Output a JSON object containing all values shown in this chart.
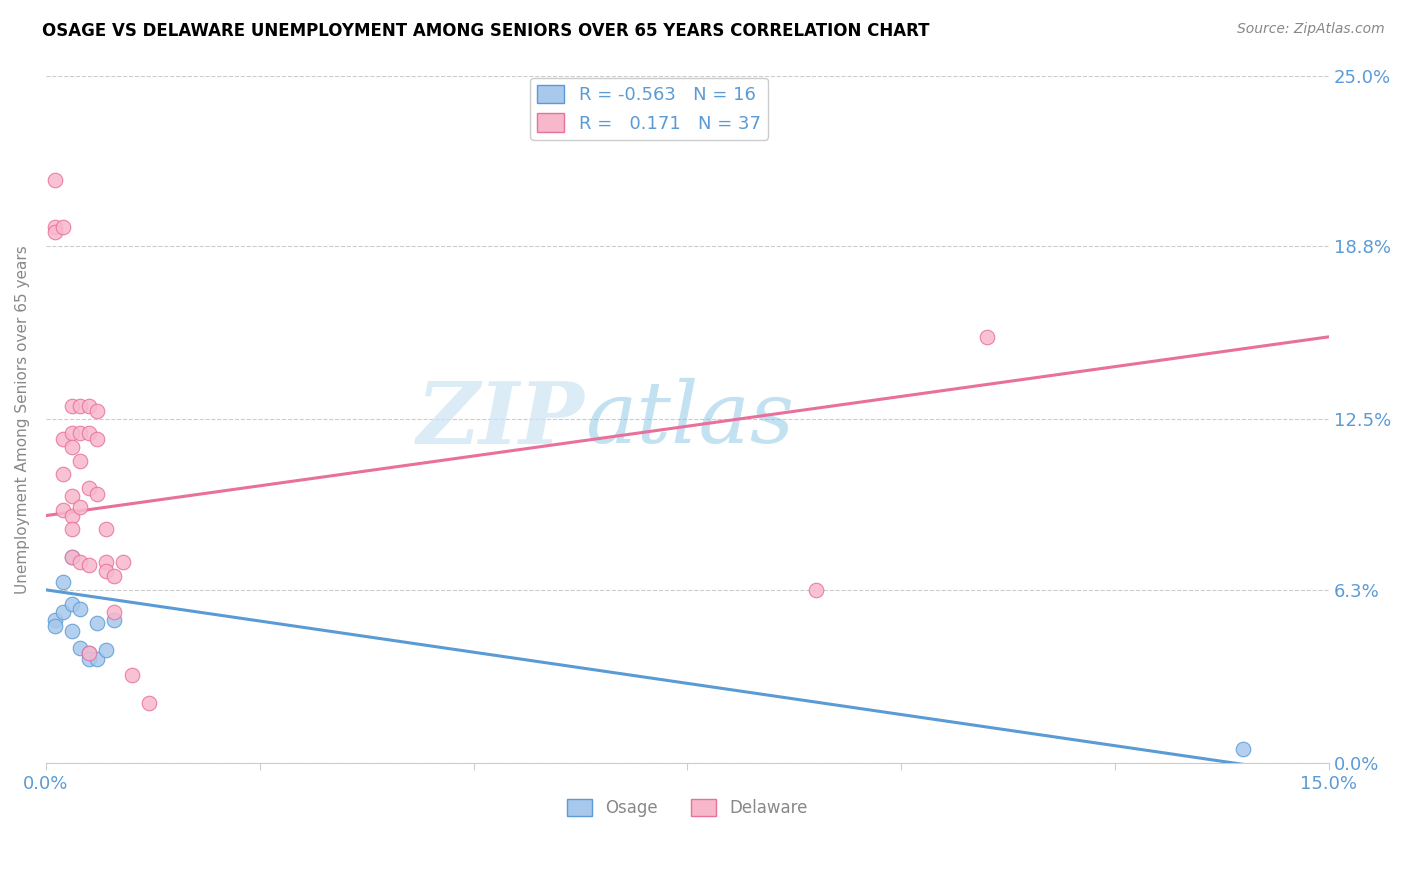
{
  "title": "OSAGE VS DELAWARE UNEMPLOYMENT AMONG SENIORS OVER 65 YEARS CORRELATION CHART",
  "source": "Source: ZipAtlas.com",
  "ylabel": "Unemployment Among Seniors over 65 years",
  "xlim": [
    0,
    0.15
  ],
  "ylim": [
    0,
    0.25
  ],
  "ytick_vals": [
    0.0,
    0.063,
    0.125,
    0.188,
    0.25
  ],
  "ytick_labels": [
    "0.0%",
    "6.3%",
    "12.5%",
    "18.8%",
    "25.0%"
  ],
  "xtick_vals": [
    0.0,
    0.025,
    0.05,
    0.075,
    0.1,
    0.125,
    0.15
  ],
  "xtick_labels": [
    "0.0%",
    "",
    "",
    "",
    "",
    "",
    "15.0%"
  ],
  "osage_color": "#a8c8ec",
  "delaware_color": "#f7b8cc",
  "osage_edge_color": "#5b9bd5",
  "delaware_edge_color": "#e8709a",
  "osage_line_color": "#5b9bd5",
  "delaware_line_color": "#e8709a",
  "text_color": "#5b9bd5",
  "watermark_color": "#cce4f5",
  "osage_r": "-0.563",
  "osage_n": "16",
  "delaware_r": "0.171",
  "delaware_n": "37",
  "osage_x": [
    0.001,
    0.001,
    0.002,
    0.002,
    0.003,
    0.003,
    0.003,
    0.004,
    0.004,
    0.005,
    0.005,
    0.006,
    0.006,
    0.007,
    0.008,
    0.14
  ],
  "osage_y": [
    0.052,
    0.05,
    0.066,
    0.055,
    0.075,
    0.058,
    0.048,
    0.056,
    0.042,
    0.04,
    0.038,
    0.051,
    0.038,
    0.041,
    0.052,
    0.005
  ],
  "delaware_x": [
    0.001,
    0.001,
    0.001,
    0.002,
    0.002,
    0.002,
    0.002,
    0.003,
    0.003,
    0.003,
    0.003,
    0.003,
    0.003,
    0.003,
    0.004,
    0.004,
    0.004,
    0.004,
    0.004,
    0.005,
    0.005,
    0.005,
    0.005,
    0.005,
    0.006,
    0.006,
    0.006,
    0.007,
    0.007,
    0.007,
    0.008,
    0.008,
    0.009,
    0.01,
    0.012,
    0.09,
    0.11
  ],
  "delaware_y": [
    0.212,
    0.195,
    0.193,
    0.195,
    0.118,
    0.105,
    0.092,
    0.13,
    0.12,
    0.115,
    0.097,
    0.09,
    0.085,
    0.075,
    0.13,
    0.12,
    0.11,
    0.093,
    0.073,
    0.13,
    0.12,
    0.1,
    0.072,
    0.04,
    0.128,
    0.118,
    0.098,
    0.085,
    0.073,
    0.07,
    0.068,
    0.055,
    0.073,
    0.032,
    0.022,
    0.063,
    0.155
  ],
  "osage_trendline": [
    0.0,
    0.15,
    0.063,
    -0.005
  ],
  "delaware_trendline": [
    0.0,
    0.15,
    0.09,
    0.155
  ]
}
